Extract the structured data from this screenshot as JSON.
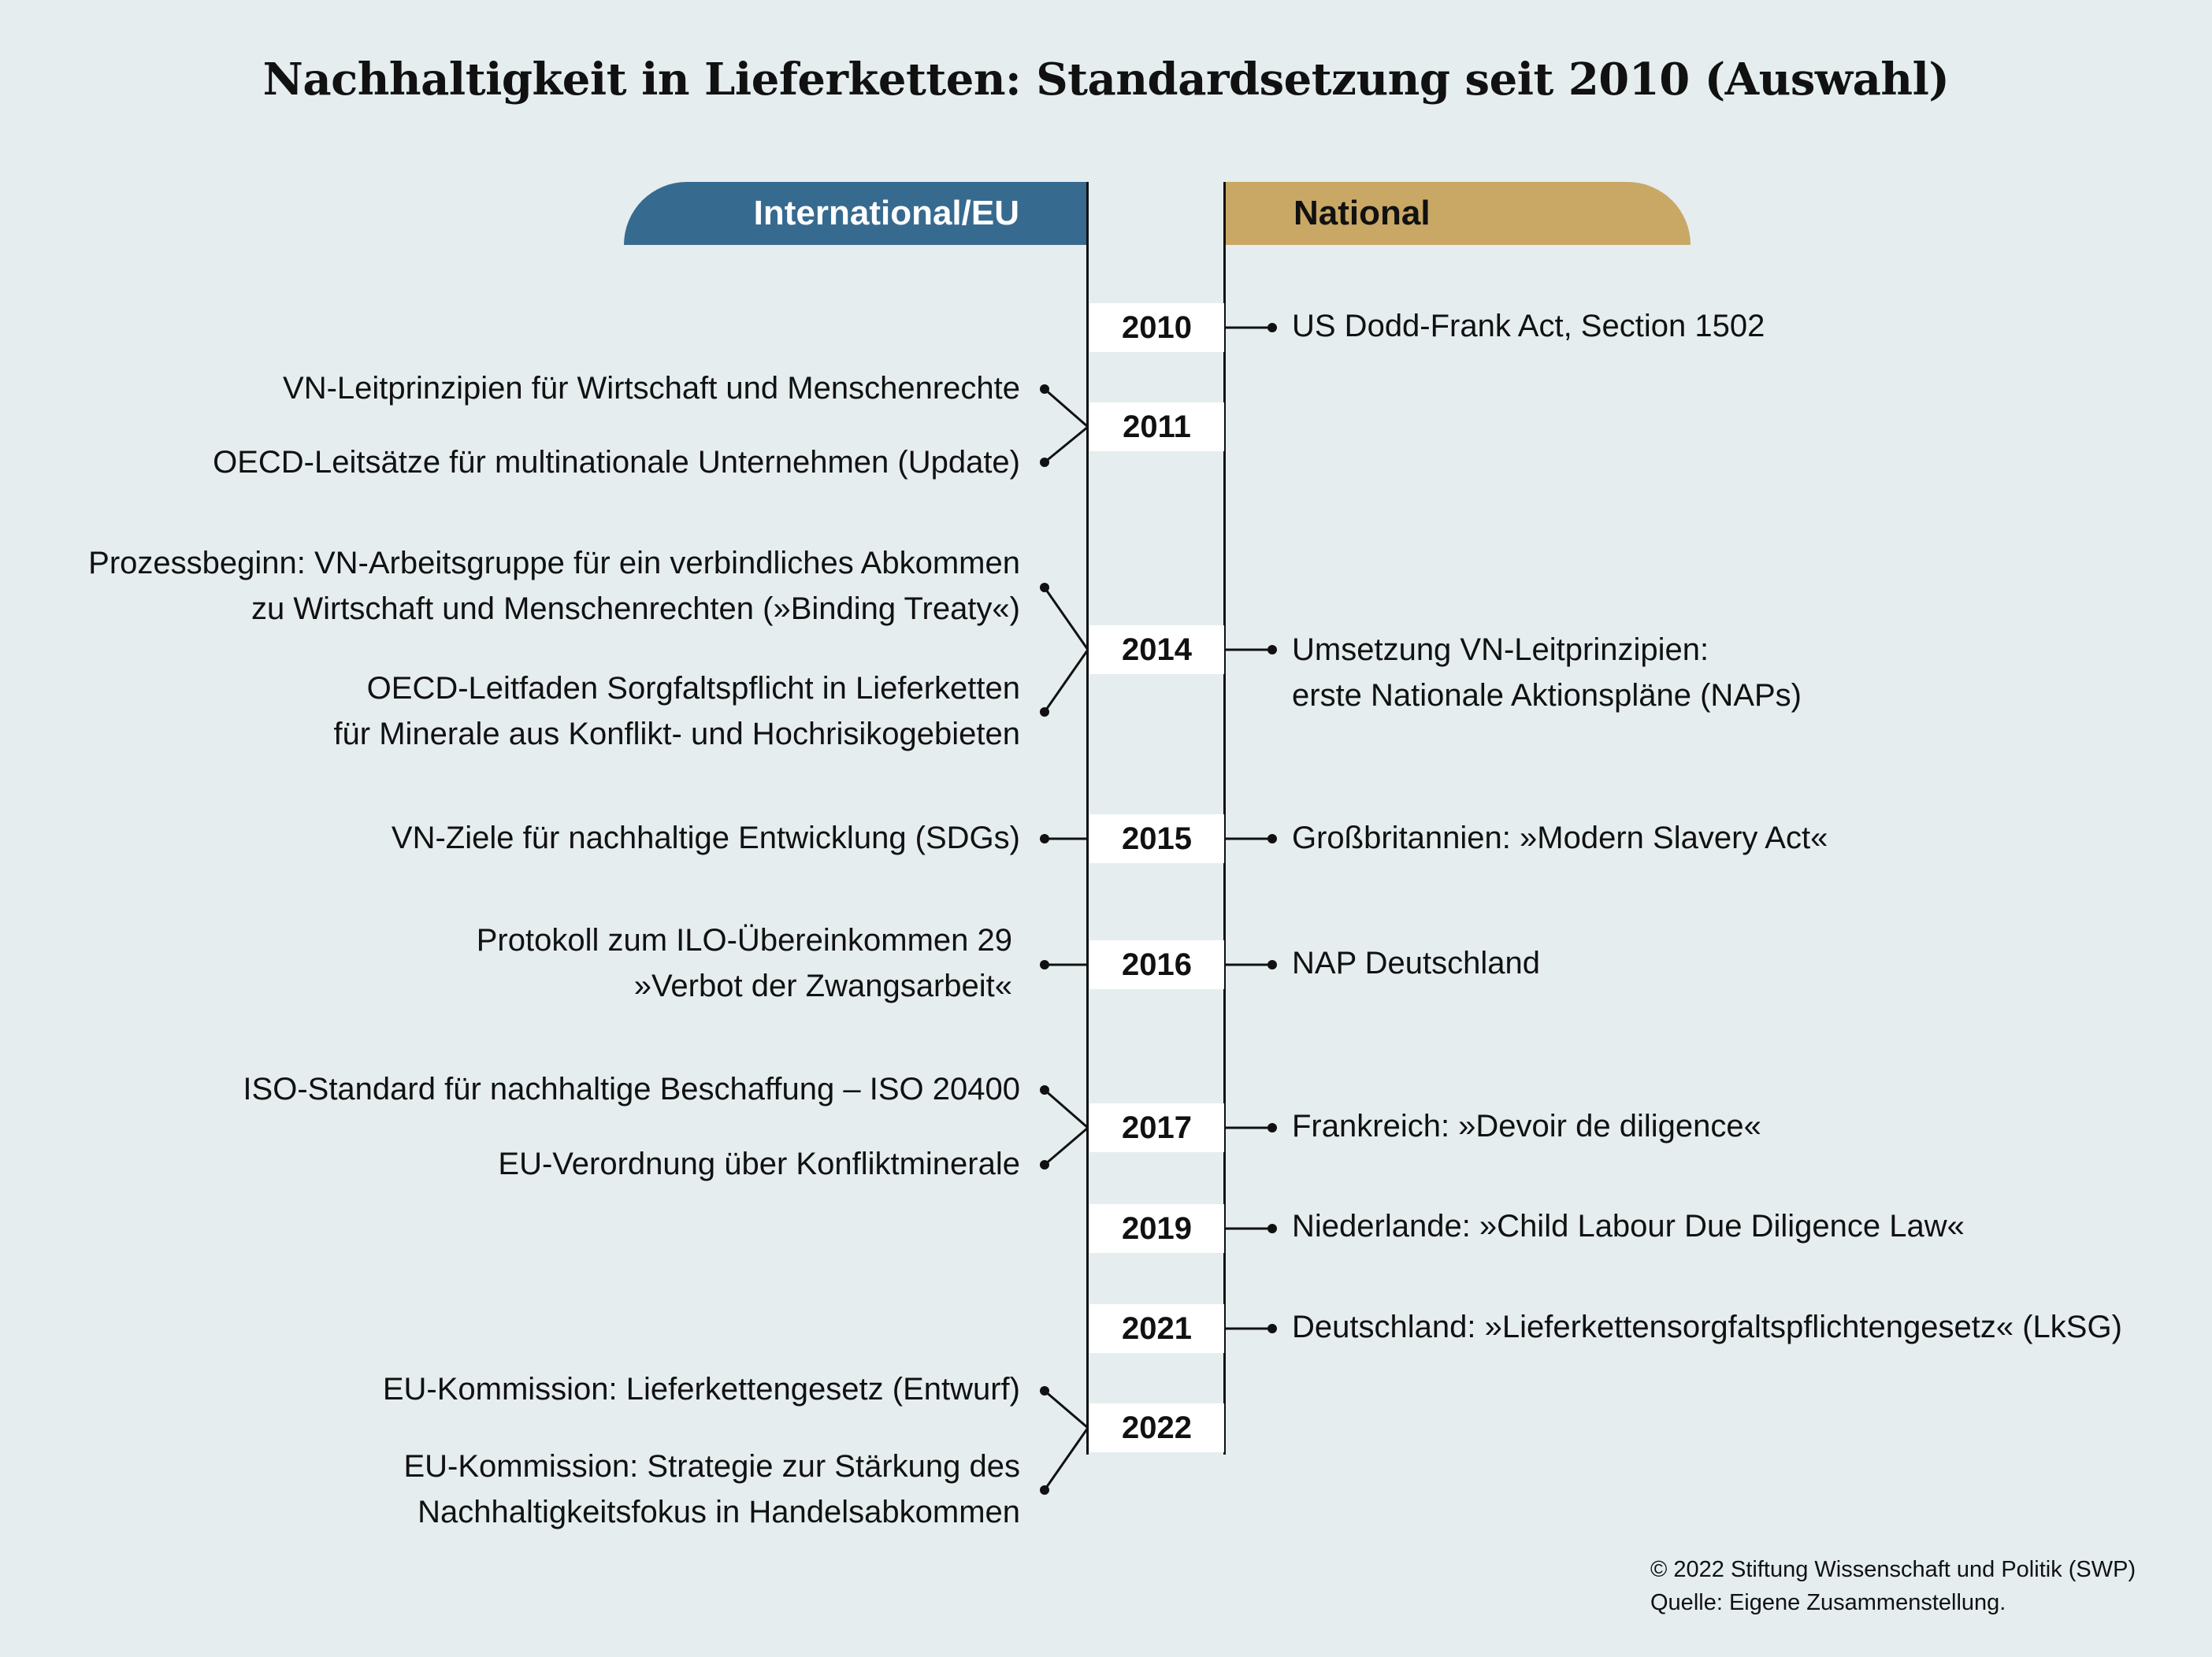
{
  "title": "Nachhaltigkeit in Lieferketten: Standardsetzung seit 2010 (Auswahl)",
  "headers": {
    "international": "International/EU",
    "national": "National"
  },
  "years": [
    "2010",
    "2011",
    "2014",
    "2015",
    "2016",
    "2017",
    "2019",
    "2021",
    "2022"
  ],
  "international": {
    "y2011_a": "VN-Leitprinzipien für Wirtschaft und Menschenrechte",
    "y2011_b": "OECD-Leitsätze für multinationale Unternehmen (Update)",
    "y2014_a1": "Prozessbeginn: VN-Arbeitsgruppe für ein verbindliches Abkommen",
    "y2014_a2": "zu Wirtschaft und Menschenrechten (»Binding Treaty«)",
    "y2014_b1": "OECD-Leitfaden Sorgfaltspflicht in Lieferketten",
    "y2014_b2": "für Minerale aus Konflikt- und Hochrisikogebieten",
    "y2015": "VN-Ziele für nachhaltige Entwicklung (SDGs)",
    "y2016_1": "Protokoll zum ILO-Übereinkommen 29",
    "y2016_2": "»Verbot der Zwangsarbeit«",
    "y2017_a": "ISO-Standard für nachhaltige Beschaffung – ISO 20400",
    "y2017_b": "EU-Verordnung über Konfliktminerale",
    "y2022_a": "EU-Kommission: Lieferkettengesetz (Entwurf)",
    "y2022_b1": "EU-Kommission: Strategie zur Stärkung des",
    "y2022_b2": "Nachhaltigkeitsfokus in Handelsabkommen"
  },
  "national": {
    "y2010": "US Dodd-Frank Act, Section 1502",
    "y2014_1": "Umsetzung VN-Leitprinzipien:",
    "y2014_2": "erste Nationale Aktionspläne (NAPs)",
    "y2015": "Großbritannien: »Modern Slavery Act«",
    "y2016": "NAP Deutschland",
    "y2017": "Frankreich: »Devoir de diligence«",
    "y2019": "Niederlande: »Child Labour Due Diligence Law«",
    "y2021": "Deutschland: »Lieferkettensorgfaltspflichtengesetz« (LkSG)"
  },
  "footer": {
    "copyright": "© 2022 Stiftung Wissenschaft und Politik (SWP)",
    "source": "Quelle: Eigene Zusammenstellung."
  }
}
